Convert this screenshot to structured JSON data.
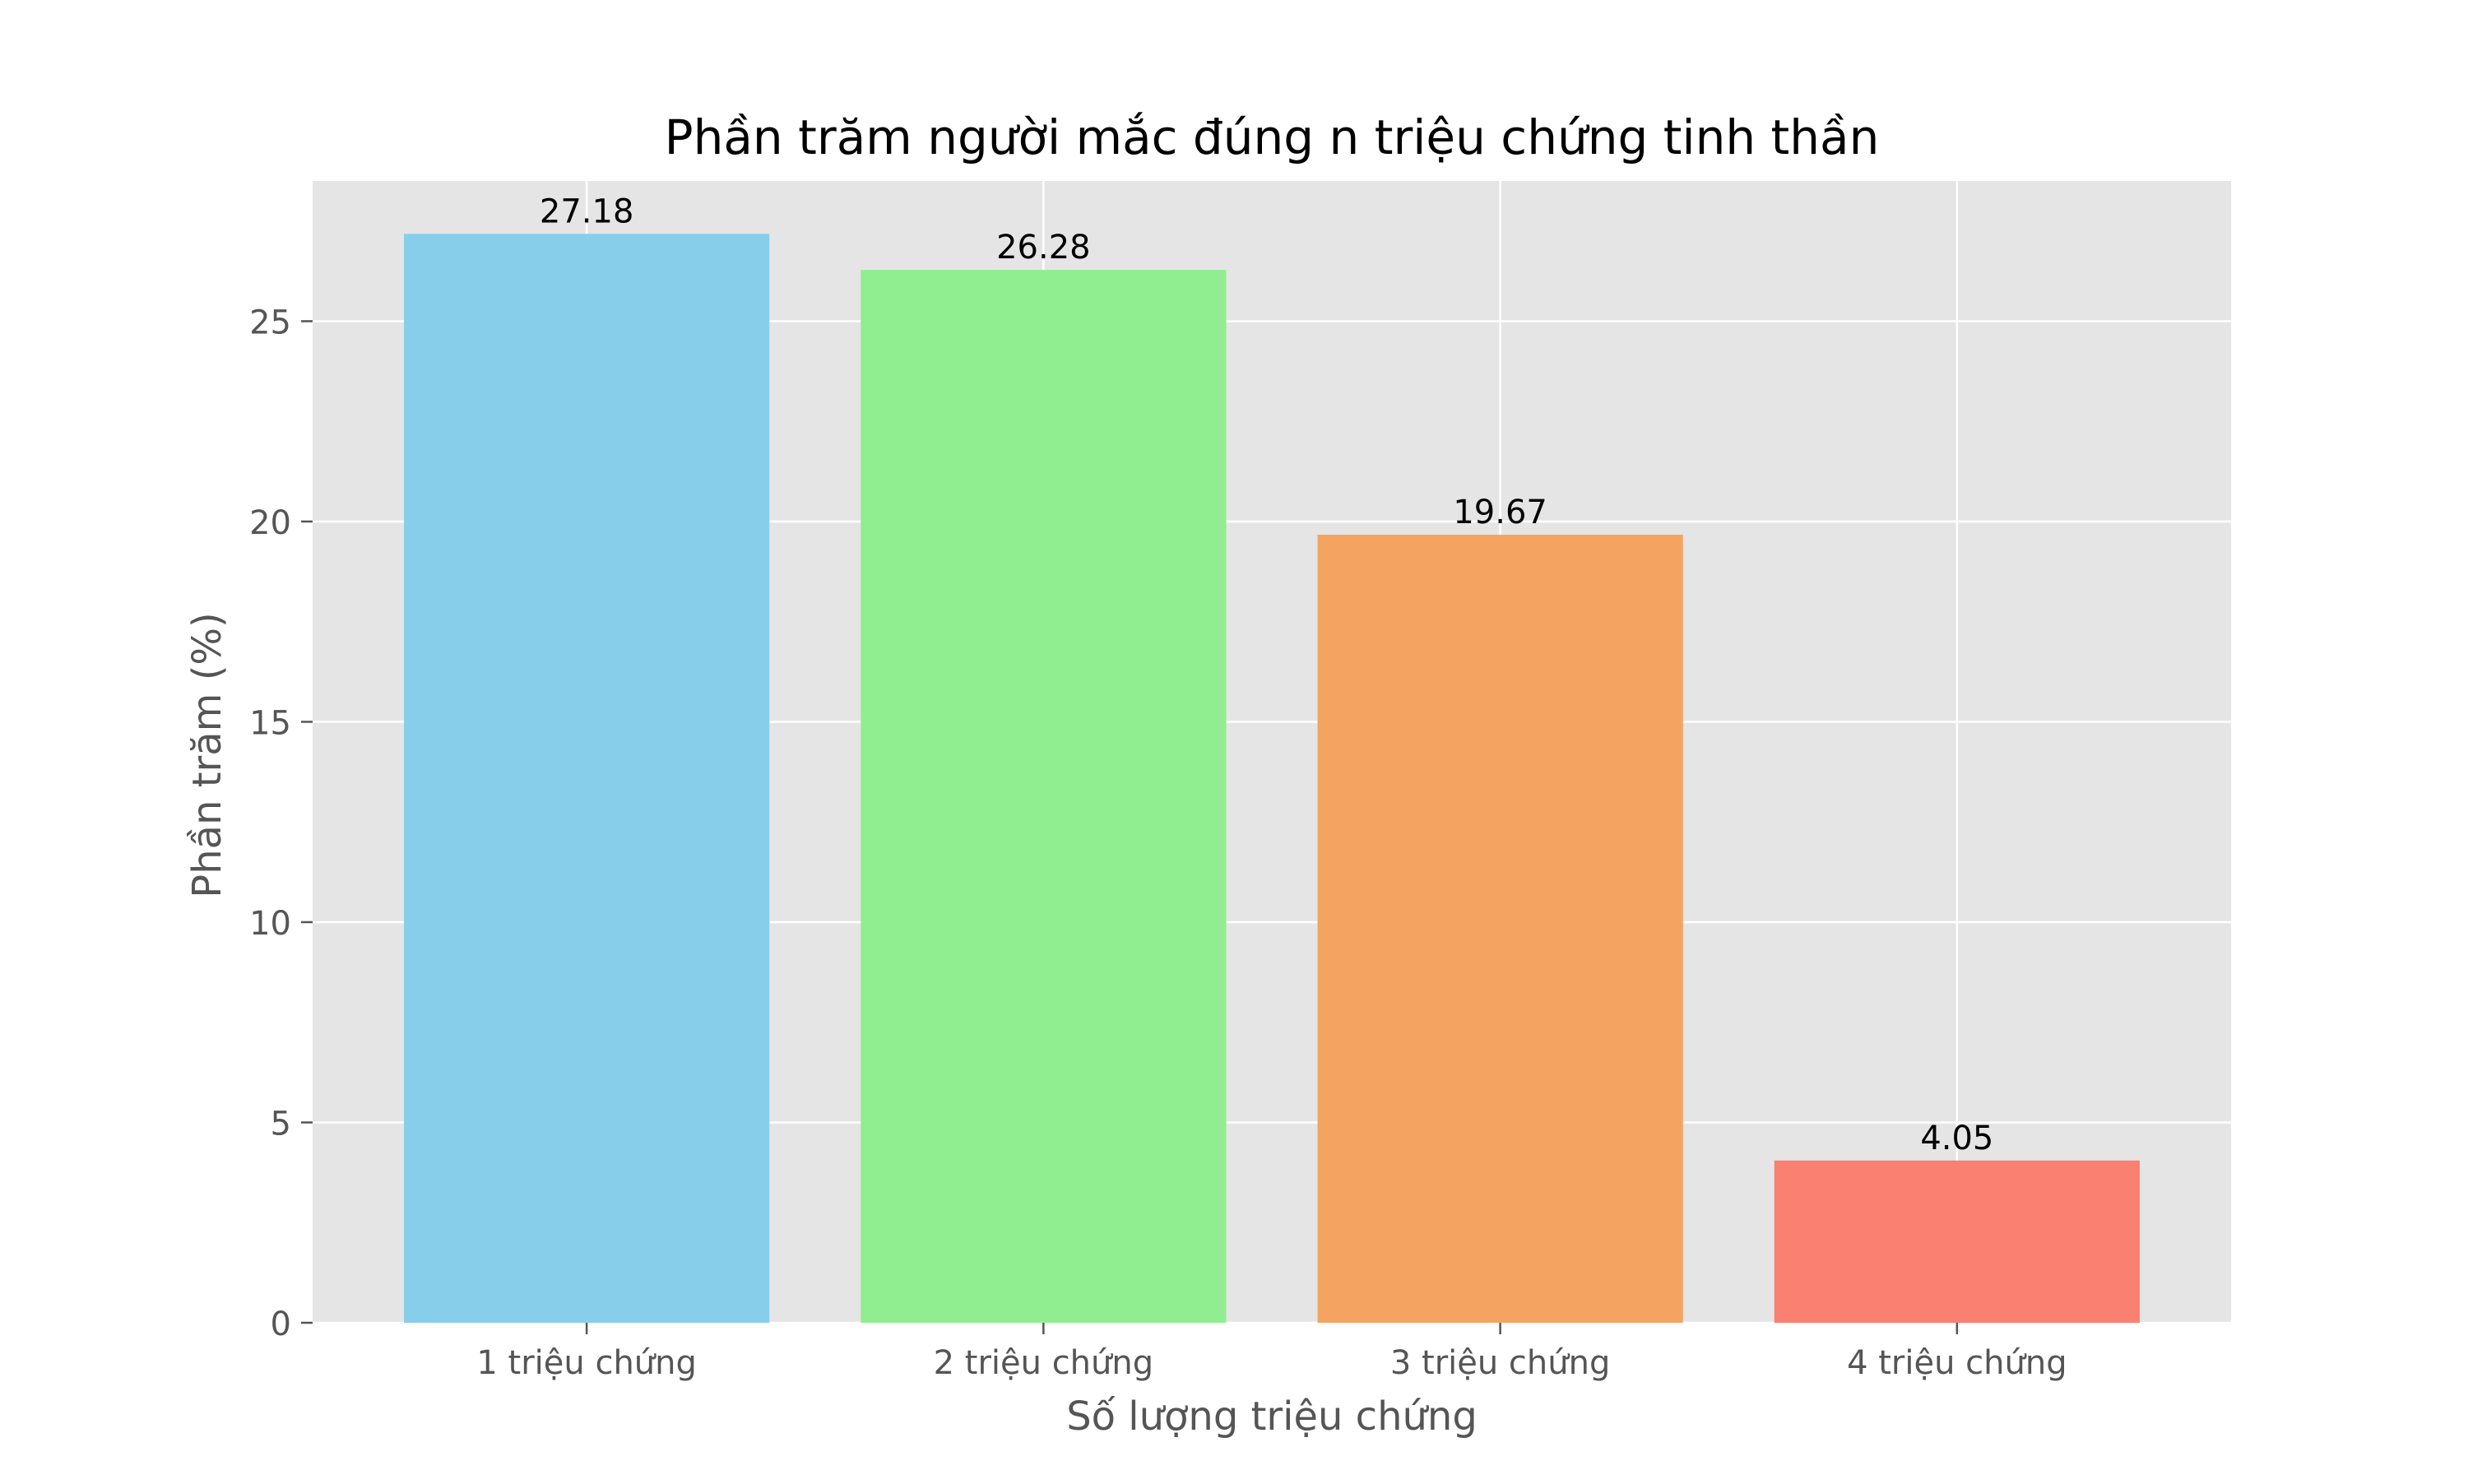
{
  "chart_data": {
    "type": "bar",
    "title": "Phần trăm người mắc đúng n triệu chứng tinh thần",
    "xlabel": "Số lượng triệu chứng",
    "ylabel": "Phần trăm (%)",
    "categories": [
      "1 triệu chứng",
      "2 triệu chứng",
      "3 triệu chứng",
      "4 triệu chứng"
    ],
    "values": [
      27.18,
      26.28,
      19.67,
      4.05
    ],
    "value_labels": [
      "27.18",
      "26.28",
      "19.67",
      "4.05"
    ],
    "colors": [
      "#87ceeb",
      "#90ee90",
      "#f4a460",
      "#fa8072"
    ],
    "yticks": [
      0,
      5,
      10,
      15,
      20,
      25
    ],
    "ylim": [
      0,
      28.5
    ],
    "grid": true,
    "background": "#e5e5e5",
    "grid_color": "#ffffff",
    "tick_label_color": "#555555"
  }
}
